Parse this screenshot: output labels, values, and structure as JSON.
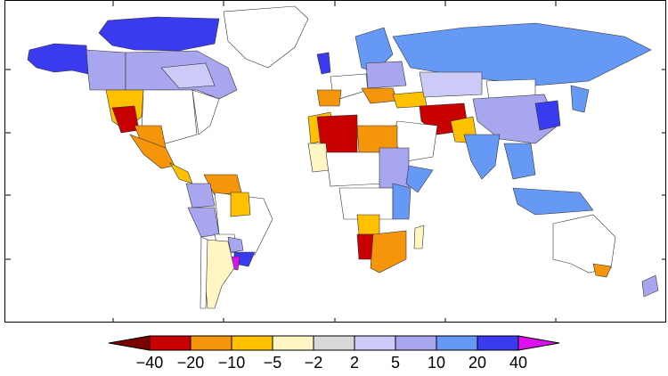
{
  "map": {
    "type": "choropleth",
    "projection": "equirectangular",
    "legend": {
      "labels": [
        "−40",
        "−20",
        "−10",
        "−5",
        "−2",
        "2",
        "5",
        "10",
        "20",
        "40"
      ],
      "classes": [
        {
          "range": "< −40",
          "color": "#7a0000"
        },
        {
          "range": "−40 to −20",
          "color": "#c80000"
        },
        {
          "range": "−20 to −10",
          "color": "#f5960a"
        },
        {
          "range": "−10 to −5",
          "color": "#ffc000"
        },
        {
          "range": "−5 to −2",
          "color": "#fff6c3"
        },
        {
          "range": "−2 to 2",
          "color": "#d9d9d9"
        },
        {
          "range": "2 to 5",
          "color": "#cccaf6"
        },
        {
          "range": "5 to 10",
          "color": "#a8a6ee"
        },
        {
          "range": "10 to 20",
          "color": "#6699f5"
        },
        {
          "range": "20 to 40",
          "color": "#3a3aee"
        },
        {
          "range": "> 40",
          "color": "#dd10ee"
        }
      ]
    }
  }
}
